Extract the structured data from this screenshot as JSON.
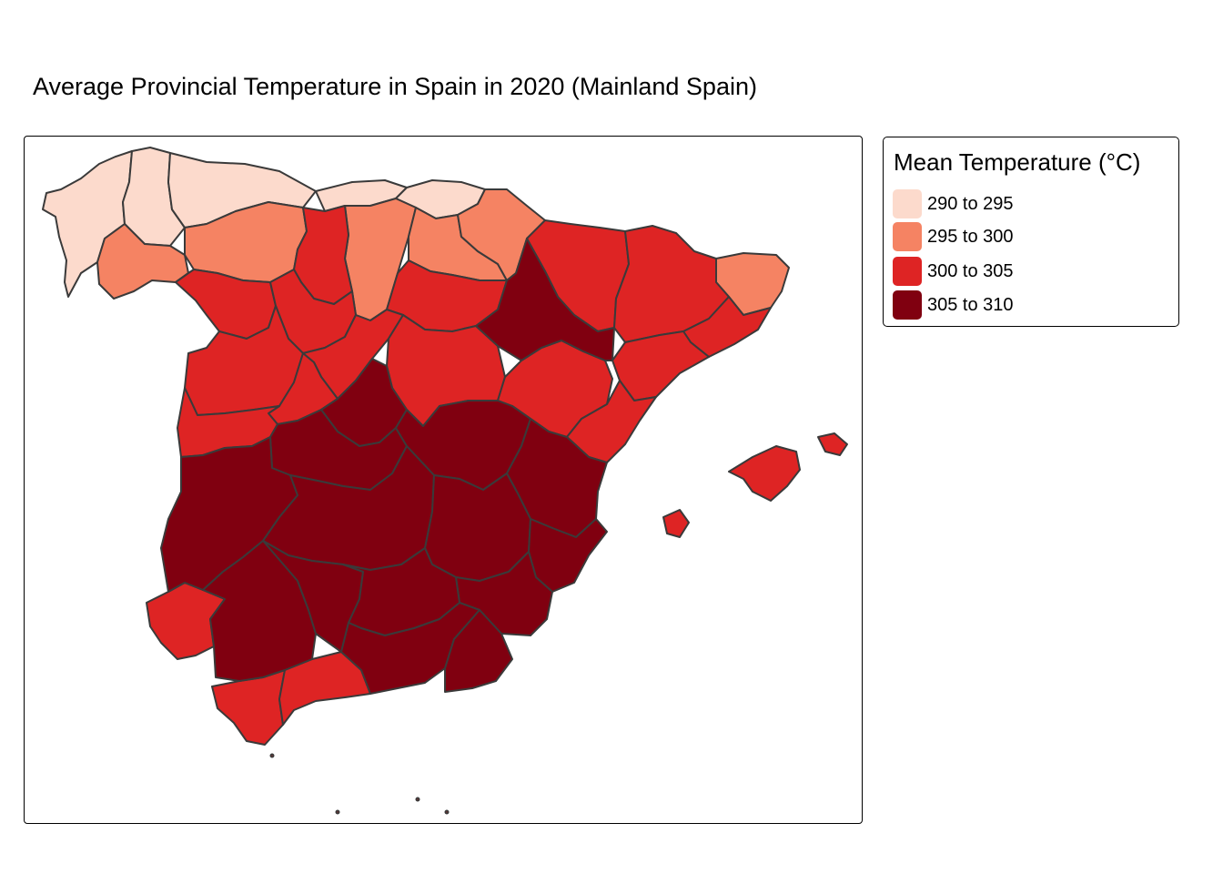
{
  "title": "Average Provincial Temperature in Spain in 2020 (Mainland Spain)",
  "legend": {
    "title": "Mean Temperature (°C)",
    "items": [
      {
        "label": "290 to 295",
        "color": "#fcdacc"
      },
      {
        "label": "295 to 300",
        "color": "#f58363"
      },
      {
        "label": "300 to 305",
        "color": "#de2424"
      },
      {
        "label": "305 to 310",
        "color": "#800010"
      }
    ]
  },
  "border_color": "#3a3a3a"
}
